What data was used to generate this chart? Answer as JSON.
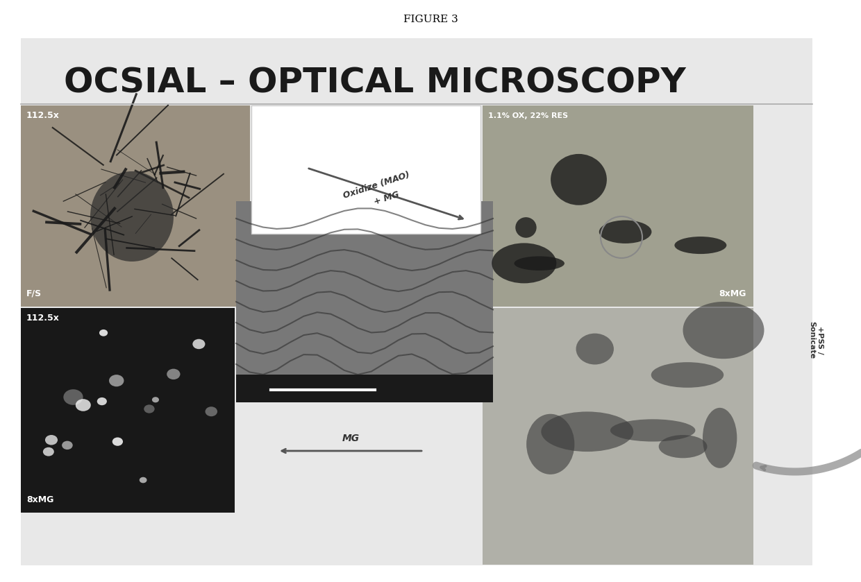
{
  "figure_title": "FIGURE 3",
  "main_title": "OCSIAL – OPTICAL MICROSCOPY",
  "background_color": "#ffffff",
  "panel_bg": "#d8d8d8",
  "top_left_label": "112.5x",
  "top_left_sublabel": "F/S",
  "top_right_label": "1.1% OX, 22% RES",
  "top_right_sublabel": "8xMG",
  "bottom_left_label": "112.5x",
  "bottom_left_sublabel": "8xMG",
  "center_arrow_text1": "Oxidize (MAO)",
  "center_arrow_text2": "+ MG",
  "bottom_arrow_text": "MG",
  "right_arrow_text": "+PSS /\nSonicate",
  "title_fontsize": 11,
  "main_title_fontsize": 36,
  "label_fontsize": 9
}
